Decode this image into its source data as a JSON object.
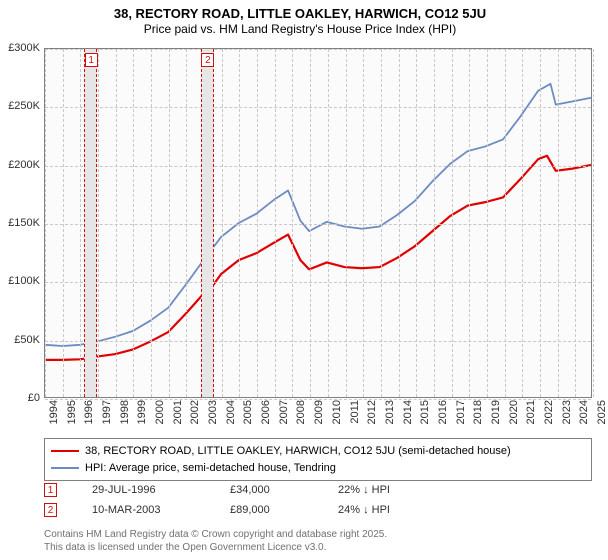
{
  "title_line1": "38, RECTORY ROAD, LITTLE OAKLEY, HARWICH, CO12 5JU",
  "title_line2": "Price paid vs. HM Land Registry's House Price Index (HPI)",
  "chart": {
    "type": "line",
    "plot_bg": "#fbfbfb",
    "grid_color": "#c8c8c8",
    "axis_color": "#808080",
    "x_years": [
      1994,
      1995,
      1996,
      1997,
      1998,
      1999,
      2000,
      2001,
      2002,
      2003,
      2004,
      2005,
      2006,
      2007,
      2008,
      2009,
      2010,
      2011,
      2012,
      2013,
      2014,
      2015,
      2016,
      2017,
      2018,
      2019,
      2020,
      2021,
      2022,
      2023,
      2024,
      2025
    ],
    "y_ticks": [
      0,
      50000,
      100000,
      150000,
      200000,
      250000,
      300000
    ],
    "y_tick_labels": [
      "£0",
      "£50K",
      "£100K",
      "£150K",
      "£200K",
      "£250K",
      "£300K"
    ],
    "y_min": 0,
    "y_max": 300000,
    "series": [
      {
        "name": "subject_property",
        "label": "38, RECTORY ROAD, LITTLE OAKLEY, HARWICH, CO12 5JU (semi-detached house)",
        "color": "#e00000",
        "line_width": 2.2,
        "points": [
          [
            1994,
            32000
          ],
          [
            1995,
            32000
          ],
          [
            1996,
            32500
          ],
          [
            1996.6,
            34000
          ],
          [
            1997,
            35000
          ],
          [
            1998,
            37000
          ],
          [
            1999,
            41000
          ],
          [
            2000,
            48000
          ],
          [
            2001,
            56000
          ],
          [
            2002,
            72000
          ],
          [
            2003,
            89000
          ],
          [
            2003.2,
            89000
          ],
          [
            2004,
            106000
          ],
          [
            2005,
            118000
          ],
          [
            2006,
            124000
          ],
          [
            2007,
            133000
          ],
          [
            2007.8,
            140000
          ],
          [
            2008.5,
            118000
          ],
          [
            2009,
            110000
          ],
          [
            2010,
            116000
          ],
          [
            2011,
            112000
          ],
          [
            2012,
            111000
          ],
          [
            2013,
            112000
          ],
          [
            2014,
            120000
          ],
          [
            2015,
            130000
          ],
          [
            2016,
            143000
          ],
          [
            2017,
            156000
          ],
          [
            2018,
            165000
          ],
          [
            2019,
            168000
          ],
          [
            2020,
            172000
          ],
          [
            2021,
            188000
          ],
          [
            2022,
            205000
          ],
          [
            2022.5,
            208000
          ],
          [
            2023,
            195000
          ],
          [
            2024,
            197000
          ],
          [
            2025,
            200000
          ]
        ]
      },
      {
        "name": "hpi_tendring",
        "label": "HPI: Average price, semi-detached house, Tendring",
        "color": "#6b8bc4",
        "line_width": 1.8,
        "points": [
          [
            1994,
            45000
          ],
          [
            1995,
            44000
          ],
          [
            1996,
            45000
          ],
          [
            1997,
            48000
          ],
          [
            1998,
            52000
          ],
          [
            1999,
            57000
          ],
          [
            2000,
            66000
          ],
          [
            2001,
            77000
          ],
          [
            2002,
            97000
          ],
          [
            2003,
            118000
          ],
          [
            2004,
            138000
          ],
          [
            2005,
            150000
          ],
          [
            2006,
            158000
          ],
          [
            2007,
            170000
          ],
          [
            2007.8,
            178000
          ],
          [
            2008.5,
            152000
          ],
          [
            2009,
            143000
          ],
          [
            2010,
            151000
          ],
          [
            2011,
            147000
          ],
          [
            2012,
            145000
          ],
          [
            2013,
            147000
          ],
          [
            2014,
            157000
          ],
          [
            2015,
            169000
          ],
          [
            2016,
            186000
          ],
          [
            2017,
            201000
          ],
          [
            2018,
            212000
          ],
          [
            2019,
            216000
          ],
          [
            2020,
            222000
          ],
          [
            2021,
            242000
          ],
          [
            2022,
            264000
          ],
          [
            2022.7,
            270000
          ],
          [
            2023,
            252000
          ],
          [
            2024,
            255000
          ],
          [
            2025,
            258000
          ]
        ]
      }
    ],
    "sale_bands": [
      {
        "id": "1",
        "year": 1996.58,
        "half_width_years": 0.35
      },
      {
        "id": "2",
        "year": 2003.19,
        "half_width_years": 0.35
      }
    ],
    "sale_points": [
      {
        "year": 1996.58,
        "price": 34000
      },
      {
        "year": 2003.19,
        "price": 89000
      }
    ]
  },
  "legend": {
    "rows": [
      {
        "color": "#e00000",
        "text": "38, RECTORY ROAD, LITTLE OAKLEY, HARWICH, CO12 5JU (semi-detached house)"
      },
      {
        "color": "#6b8bc4",
        "text": "HPI: Average price, semi-detached house, Tendring"
      }
    ]
  },
  "sales": [
    {
      "id": "1",
      "date": "29-JUL-1996",
      "price": "£34,000",
      "delta": "22% ↓ HPI"
    },
    {
      "id": "2",
      "date": "10-MAR-2003",
      "price": "£89,000",
      "delta": "24% ↓ HPI"
    }
  ],
  "footer_line1": "Contains HM Land Registry data © Crown copyright and database right 2025.",
  "footer_line2": "This data is licensed under the Open Government Licence v3.0.",
  "marker_color": "#d01010"
}
